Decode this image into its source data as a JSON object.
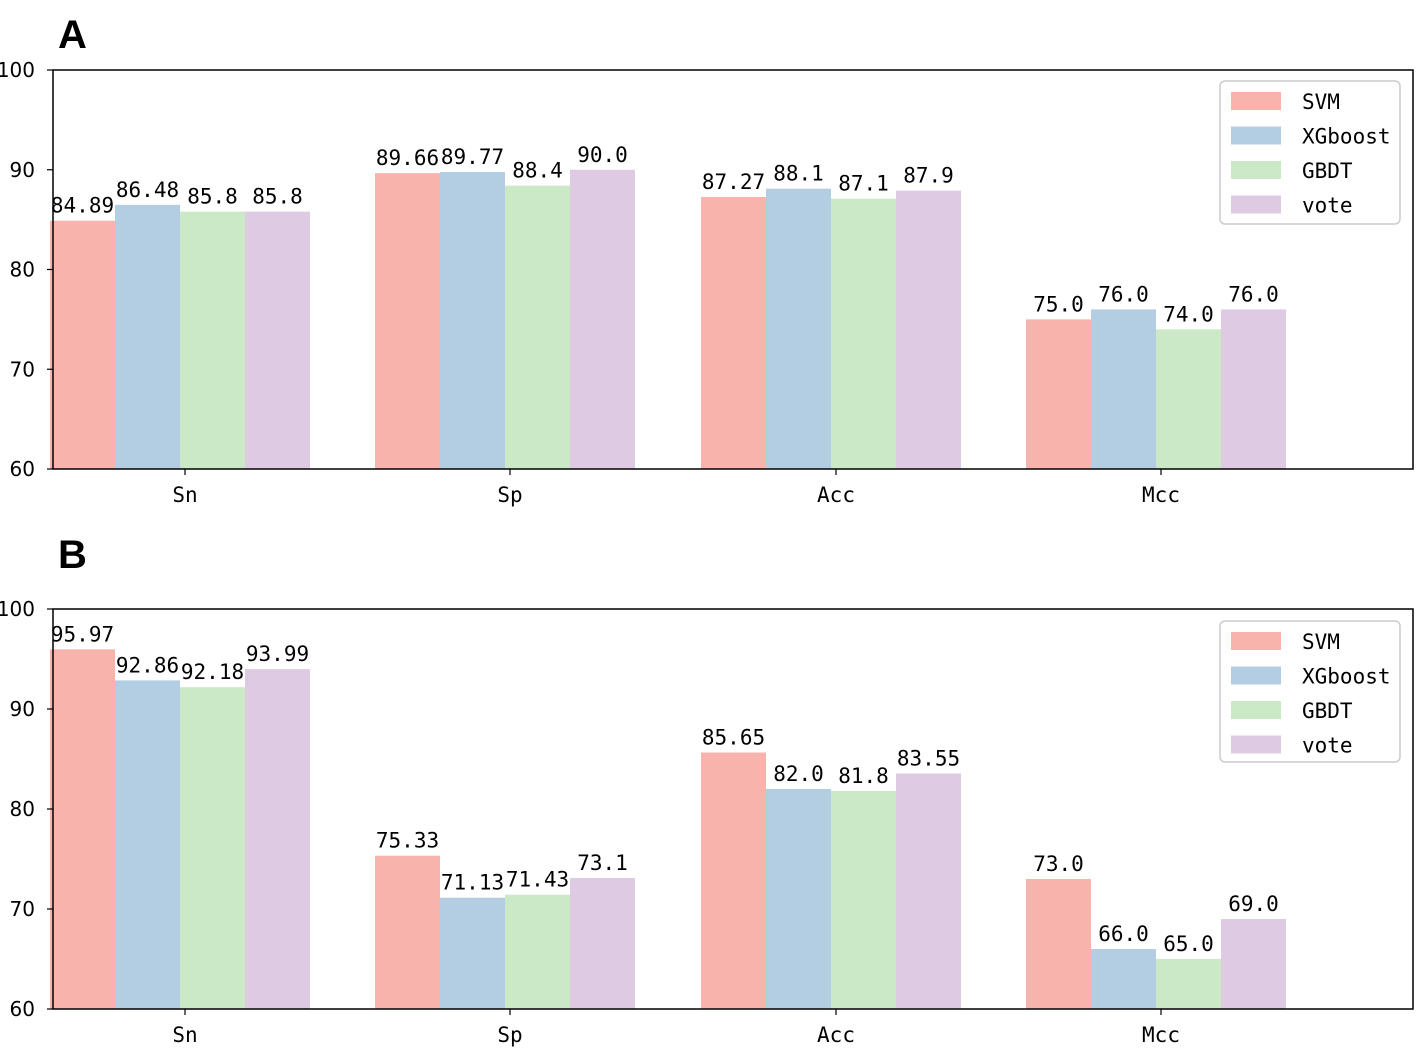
{
  "colors": {
    "SVM": "#f8b3ac",
    "XGboost": "#b3cde3",
    "GBDT": "#cbe9c6",
    "vote": "#dfcae4"
  },
  "chart_data": [
    {
      "panel": "A",
      "type": "bar",
      "categories": [
        "Sn",
        "Sp",
        "Acc",
        "Mcc"
      ],
      "series": [
        {
          "name": "SVM",
          "values": [
            84.89,
            89.66,
            87.27,
            75.0
          ],
          "labels": [
            "84.89",
            "89.66",
            "87.27",
            "75.0"
          ]
        },
        {
          "name": "XGboost",
          "values": [
            86.48,
            89.77,
            88.1,
            76.0
          ],
          "labels": [
            "86.48",
            "89.77",
            "88.1",
            "76.0"
          ]
        },
        {
          "name": "GBDT",
          "values": [
            85.8,
            88.4,
            87.1,
            74.0
          ],
          "labels": [
            "85.8",
            "88.4",
            "87.1",
            "74.0"
          ]
        },
        {
          "name": "vote",
          "values": [
            85.8,
            90.0,
            87.9,
            76.0
          ],
          "labels": [
            "85.8",
            "90.0",
            "87.9",
            "76.0"
          ]
        }
      ],
      "ylim": [
        60,
        100
      ],
      "yticks": [
        "60",
        "70",
        "80",
        "90",
        "100"
      ],
      "legend": "top-right"
    },
    {
      "panel": "B",
      "type": "bar",
      "categories": [
        "Sn",
        "Sp",
        "Acc",
        "Mcc"
      ],
      "series": [
        {
          "name": "SVM",
          "values": [
            95.97,
            75.33,
            85.65,
            73.0
          ],
          "labels": [
            "95.97",
            "75.33",
            "85.65",
            "73.0"
          ]
        },
        {
          "name": "XGboost",
          "values": [
            92.86,
            71.13,
            82.0,
            66.0
          ],
          "labels": [
            "92.86",
            "71.13",
            "82.0",
            "66.0"
          ]
        },
        {
          "name": "GBDT",
          "values": [
            92.18,
            71.43,
            81.8,
            65.0
          ],
          "labels": [
            "92.18",
            "71.43",
            "81.8",
            "65.0"
          ]
        },
        {
          "name": "vote",
          "values": [
            93.99,
            73.1,
            83.55,
            69.0
          ],
          "labels": [
            "93.99",
            "73.1",
            "83.55",
            "69.0"
          ]
        }
      ],
      "ylim": [
        60,
        100
      ],
      "yticks": [
        "60",
        "70",
        "80",
        "90",
        "100"
      ],
      "legend": "top-right"
    }
  ]
}
